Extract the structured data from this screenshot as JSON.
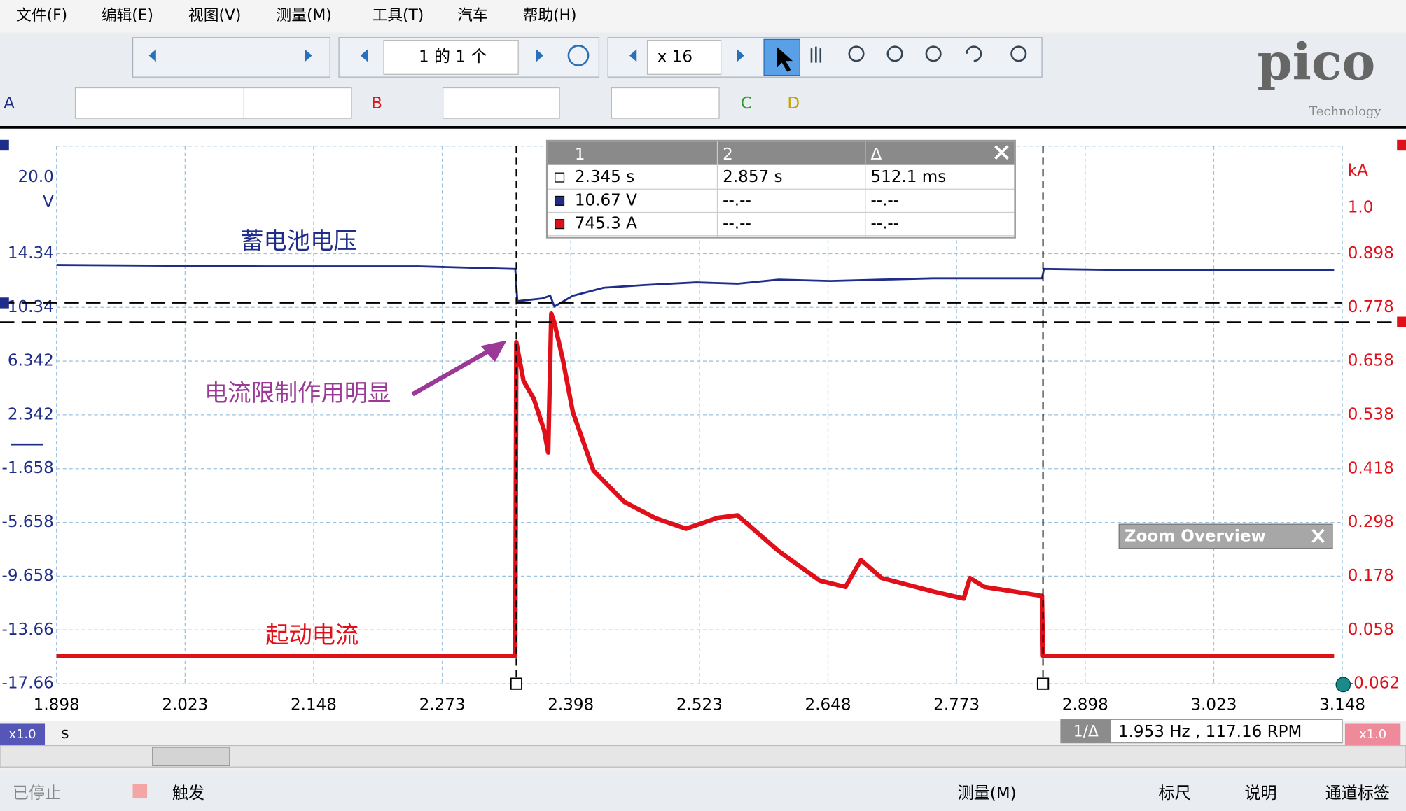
{
  "menu": [
    "文件(F)",
    "编辑(E)",
    "视图(V)",
    "测量(M)",
    "工具(T)",
    "汽车",
    "帮助(H)"
  ],
  "toolbar": {
    "page": "1 的 1 个",
    "zoom": "x 16",
    "channels": [
      "A",
      "B",
      "C",
      "D"
    ]
  },
  "logo": {
    "name": "pico",
    "tagline": "Technology"
  },
  "chart_data": {
    "type": "line",
    "xlabel": "s",
    "ylabel": "V",
    "y2label": "kA",
    "xlim": [
      1.898,
      3.148
    ],
    "xticks": [
      1.898,
      2.023,
      2.148,
      2.273,
      2.398,
      2.523,
      2.648,
      2.773,
      2.898,
      3.023,
      3.148
    ],
    "ylim": [
      -17.66,
      22.34
    ],
    "yticks": [
      {
        "value": 20,
        "label": "20.0"
      },
      14.34,
      10.34,
      6.342,
      2.342,
      -1.658,
      -5.658,
      -9.658,
      -13.66,
      -17.66
    ],
    "y2lim": [
      -0.062,
      1.138
    ],
    "y2ticks": [
      {
        "value": 1,
        "label": "1.0"
      },
      0.898,
      0.778,
      0.658,
      0.538,
      0.418,
      0.298,
      0.178,
      0.058,
      -0.062
    ],
    "grid": true,
    "series": [
      {
        "name": "蓄电池电压",
        "color": "#1f2d8a",
        "x": [
          1.898,
          2.1,
          2.25,
          2.344,
          2.346,
          2.37,
          2.378,
          2.382,
          2.4,
          2.43,
          2.47,
          2.52,
          2.56,
          2.6,
          2.65,
          2.7,
          2.75,
          2.8,
          2.856,
          2.858,
          2.95,
          3.05,
          3.14
        ],
        "values": [
          13.5,
          13.4,
          13.4,
          13.2,
          10.8,
          11.0,
          11.2,
          10.4,
          11.2,
          11.8,
          12.0,
          12.2,
          12.1,
          12.4,
          12.3,
          12.4,
          12.5,
          12.5,
          12.5,
          13.2,
          13.1,
          13.1,
          13.1
        ]
      },
      {
        "name": "起动电流",
        "color": "#e0101a",
        "axis": "y2",
        "x": [
          1.898,
          2.1,
          2.344,
          2.345,
          2.352,
          2.362,
          2.372,
          2.376,
          2.379,
          2.382,
          2.39,
          2.4,
          2.42,
          2.45,
          2.48,
          2.51,
          2.54,
          2.56,
          2.6,
          2.64,
          2.665,
          2.68,
          2.7,
          2.75,
          2.78,
          2.786,
          2.8,
          2.856,
          2.857,
          2.95,
          3.05,
          3.14
        ],
        "values": [
          0,
          0,
          0,
          0.7,
          0.614,
          0.574,
          0.504,
          0.454,
          0.764,
          0.744,
          0.664,
          0.544,
          0.414,
          0.344,
          0.308,
          0.284,
          0.308,
          0.314,
          0.234,
          0.168,
          0.154,
          0.214,
          0.174,
          0.144,
          0.128,
          0.174,
          0.154,
          0.134,
          0,
          0,
          0,
          0
        ]
      }
    ],
    "rulers": {
      "x": [
        2.345,
        2.857
      ],
      "y": 10.67,
      "y2": 0.7453
    },
    "annotations": [
      {
        "text": "蓄电池电压",
        "color": "#1f2d8a"
      },
      {
        "text": "电流限制作用明显",
        "color": "#9b3a96"
      },
      {
        "text": "起动电流",
        "color": "#e0101a"
      }
    ]
  },
  "ruler_table": {
    "headers": [
      "1",
      "2",
      "Δ"
    ],
    "rows": [
      [
        "2.345 s",
        "2.857 s",
        "512.1 ms"
      ],
      [
        "10.67 V",
        "--.--",
        "--.--"
      ],
      [
        "745.3 A",
        "--.--",
        "--.--"
      ]
    ]
  },
  "zoom_overview": "Zoom Overview",
  "status": {
    "x_scale": "x1.0",
    "x_unit": "s",
    "freq_label": "1/Δ",
    "freq": "1.953 Hz , 117.16 RPM",
    "y2_scale": "x1.0"
  },
  "bottom_toolbar": [
    "已停止",
    "触发",
    "测量(M)",
    "标尺",
    "说明",
    "通道标签"
  ]
}
